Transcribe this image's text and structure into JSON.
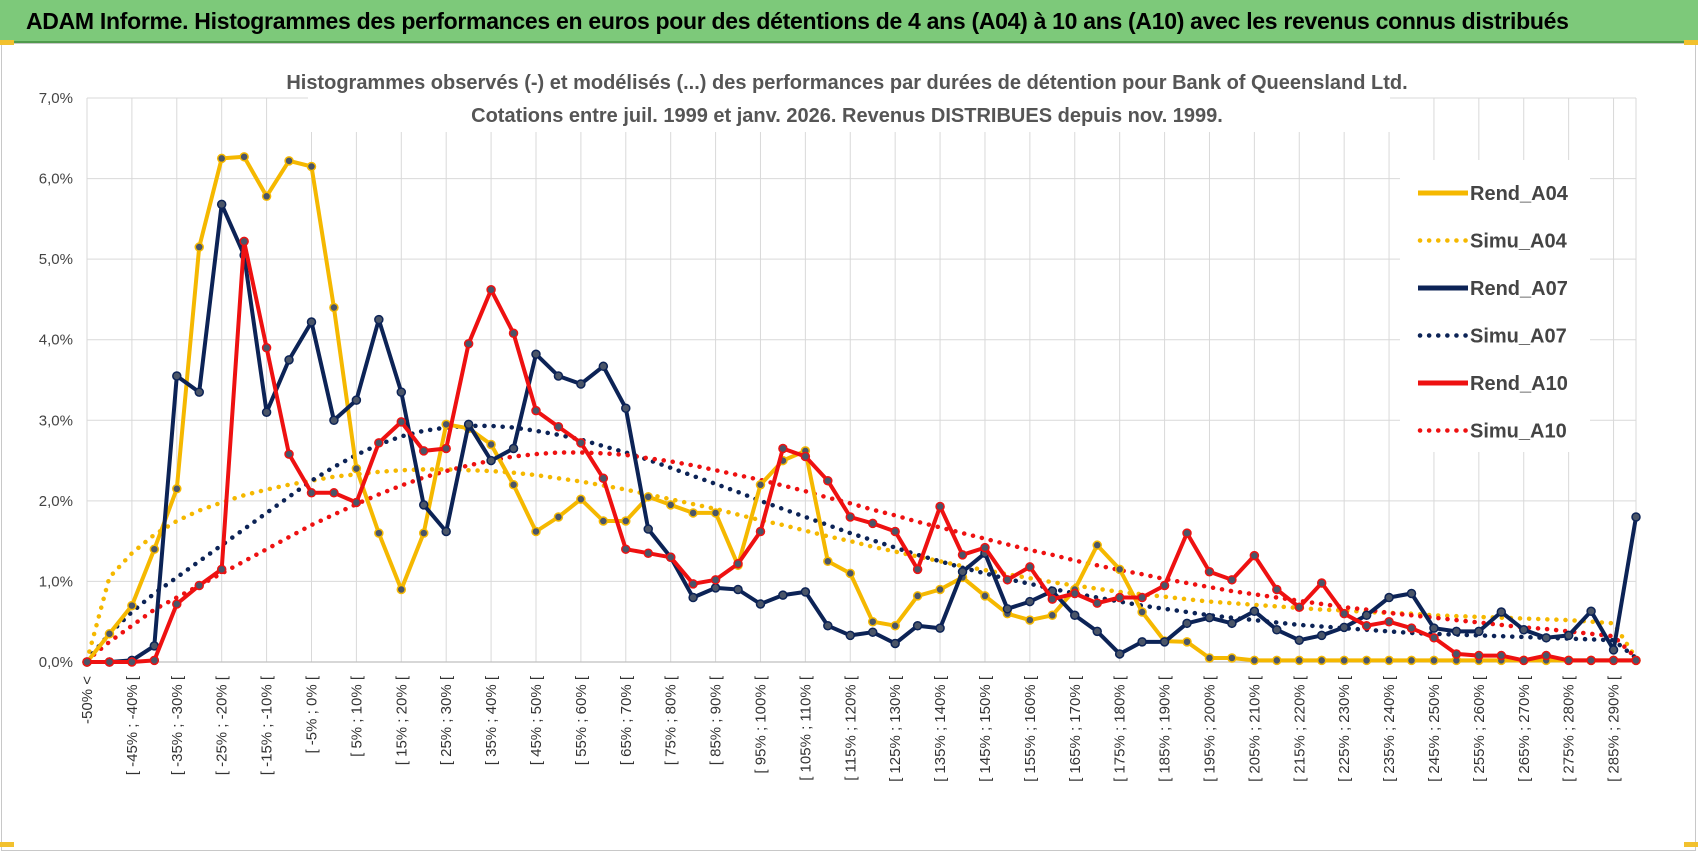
{
  "header": {
    "title": "ADAM Informe. Histogrammes des performances en euros pour des détentions de 4 ans (A04) à 10 ans (A10) avec les revenus connus distribués"
  },
  "colors": {
    "banner_bg": "#7dc97a",
    "A04": "#f5b800",
    "A07": "#0c2356",
    "A10": "#ee1111",
    "grid": "#d9d9d9"
  },
  "chart_data": {
    "type": "line",
    "title_lines": [
      "Histogrammes observés (-) et modélisés (...) des performances par durées de détention pour Bank of Queensland Ltd.",
      "Cotations entre juil. 1999 et janv. 2026. Revenus DISTRIBUES depuis nov. 1999."
    ],
    "y_ticks": [
      "0,0%",
      "1,0%",
      "2,0%",
      "3,0%",
      "4,0%",
      "5,0%",
      "6,0%",
      "7,0%"
    ],
    "ylim": [
      0,
      7
    ],
    "y_unit": "%",
    "x_labels": [
      "-50% <",
      "[ -45% ; -40% [",
      "[ -35% ; -30% [",
      "[ -25% ; -20% [",
      "[ -15% ; -10% [",
      "[ -5% ; 0% [",
      "[ 5% ; 10% [",
      "[ 15% ; 20% [",
      "[ 25% ; 30% [",
      "[ 35% ; 40% [",
      "[ 45% ; 50% [",
      "[ 55% ; 60% [",
      "[ 65% ; 70% [",
      "[ 75% ; 80% [",
      "[ 85% ; 90% [",
      "[ 95% ; 100% [",
      "[ 105% ; 110% [",
      "[ 115% ; 120% [",
      "[ 125% ; 130% [",
      "[ 135% ; 140% [",
      "[ 145% ; 150% [",
      "[ 155% ; 160% [",
      "[ 165% ; 170% [",
      "[ 175% ; 180% [",
      "[ 185% ; 190% [",
      "[ 195% ; 200% [",
      "[ 205% ; 210% [",
      "[ 215% ; 220% [",
      "[ 225% ; 230% [",
      "[ 235% ; 240% [",
      "[ 245% ; 250% [",
      "[ 255% ; 260% [",
      "[ 265% ; 270% [",
      "[ 275% ; 280% [",
      "[ 285% ; 290% ["
    ],
    "legend_position": "right",
    "grid": true,
    "series": [
      {
        "name": "Rend_A04",
        "key": "A04",
        "style": "solid",
        "values": [
          0.0,
          0.35,
          0.7,
          1.4,
          2.15,
          5.15,
          6.25,
          6.27,
          5.78,
          6.22,
          6.15,
          4.4,
          2.4,
          1.6,
          0.9,
          1.6,
          2.95,
          2.9,
          2.7,
          2.2,
          1.62,
          1.8,
          2.02,
          1.75,
          1.75,
          2.05,
          1.95,
          1.85,
          1.85,
          1.2,
          2.2,
          2.5,
          2.62,
          1.25,
          1.1,
          0.5,
          0.45,
          0.82,
          0.9,
          1.05,
          0.82,
          0.6,
          0.52,
          0.58,
          0.9,
          1.45,
          1.15,
          0.62,
          0.26,
          0.25,
          0.05,
          0.05,
          0.02,
          0.02,
          0.02,
          0.02,
          0.02,
          0.02,
          0.02,
          0.02,
          0.02,
          0.02,
          0.02,
          0.02,
          0.02,
          0.02,
          0.02,
          0.02,
          0.02,
          0.02
        ]
      },
      {
        "name": "Simu_A04",
        "key": "A04",
        "style": "dotted",
        "values": [
          0.02,
          1.05,
          1.35,
          1.58,
          1.75,
          1.88,
          1.98,
          2.07,
          2.14,
          2.2,
          2.25,
          2.3,
          2.33,
          2.36,
          2.38,
          2.39,
          2.39,
          2.38,
          2.37,
          2.35,
          2.32,
          2.28,
          2.24,
          2.19,
          2.14,
          2.08,
          2.02,
          1.96,
          1.9,
          1.83,
          1.76,
          1.7,
          1.63,
          1.56,
          1.5,
          1.43,
          1.37,
          1.31,
          1.25,
          1.19,
          1.14,
          1.09,
          1.04,
          0.99,
          0.95,
          0.91,
          0.87,
          0.84,
          0.81,
          0.78,
          0.75,
          0.73,
          0.71,
          0.69,
          0.67,
          0.65,
          0.64,
          0.62,
          0.61,
          0.6,
          0.58,
          0.57,
          0.56,
          0.55,
          0.54,
          0.53,
          0.52,
          0.5,
          0.48,
          0.05
        ]
      },
      {
        "name": "Rend_A07",
        "key": "A07",
        "style": "solid",
        "values": [
          0.0,
          0.0,
          0.02,
          0.2,
          3.55,
          3.35,
          5.68,
          5.05,
          3.1,
          3.75,
          4.22,
          3.0,
          3.25,
          4.25,
          3.35,
          1.95,
          1.62,
          2.95,
          2.5,
          2.65,
          3.82,
          3.55,
          3.45,
          3.67,
          3.15,
          1.65,
          1.3,
          0.8,
          0.92,
          0.9,
          0.72,
          0.83,
          0.87,
          0.45,
          0.33,
          0.37,
          0.23,
          0.45,
          0.42,
          1.12,
          1.35,
          0.66,
          0.75,
          0.88,
          0.58,
          0.38,
          0.1,
          0.25,
          0.25,
          0.48,
          0.55,
          0.48,
          0.63,
          0.4,
          0.27,
          0.33,
          0.43,
          0.58,
          0.8,
          0.85,
          0.42,
          0.38,
          0.38,
          0.62,
          0.4,
          0.3,
          0.33,
          0.63,
          0.15,
          1.8
        ]
      },
      {
        "name": "Simu_A07",
        "key": "A07",
        "style": "dotted",
        "values": [
          0.02,
          0.35,
          0.62,
          0.85,
          1.05,
          1.25,
          1.45,
          1.65,
          1.85,
          2.05,
          2.25,
          2.42,
          2.57,
          2.7,
          2.8,
          2.87,
          2.91,
          2.93,
          2.93,
          2.91,
          2.87,
          2.82,
          2.76,
          2.68,
          2.6,
          2.51,
          2.41,
          2.31,
          2.21,
          2.11,
          2.0,
          1.9,
          1.8,
          1.7,
          1.6,
          1.51,
          1.42,
          1.33,
          1.25,
          1.17,
          1.1,
          1.03,
          0.97,
          0.91,
          0.85,
          0.8,
          0.75,
          0.7,
          0.66,
          0.62,
          0.58,
          0.55,
          0.52,
          0.49,
          0.46,
          0.44,
          0.42,
          0.4,
          0.38,
          0.36,
          0.35,
          0.34,
          0.33,
          0.32,
          0.31,
          0.3,
          0.29,
          0.28,
          0.27,
          0.05
        ]
      },
      {
        "name": "Rend_A10",
        "key": "A10",
        "style": "solid",
        "values": [
          0.0,
          0.0,
          0.0,
          0.02,
          0.72,
          0.95,
          1.15,
          5.22,
          3.9,
          2.58,
          2.1,
          2.1,
          1.98,
          2.72,
          2.98,
          2.62,
          2.65,
          3.95,
          4.62,
          4.08,
          3.12,
          2.92,
          2.72,
          2.28,
          1.4,
          1.35,
          1.3,
          0.97,
          1.02,
          1.22,
          1.62,
          2.65,
          2.55,
          2.25,
          1.8,
          1.72,
          1.62,
          1.15,
          1.93,
          1.33,
          1.42,
          1.02,
          1.18,
          0.78,
          0.85,
          0.73,
          0.8,
          0.8,
          0.95,
          1.6,
          1.12,
          1.02,
          1.32,
          0.9,
          0.68,
          0.98,
          0.6,
          0.45,
          0.5,
          0.42,
          0.3,
          0.1,
          0.08,
          0.08,
          0.02,
          0.08,
          0.02,
          0.02,
          0.02,
          0.02
        ]
      },
      {
        "name": "Simu_A10",
        "key": "A10",
        "style": "dotted",
        "values": [
          0.02,
          0.25,
          0.45,
          0.65,
          0.8,
          0.95,
          1.1,
          1.25,
          1.4,
          1.55,
          1.7,
          1.83,
          1.96,
          2.08,
          2.19,
          2.29,
          2.37,
          2.44,
          2.5,
          2.55,
          2.58,
          2.6,
          2.6,
          2.59,
          2.57,
          2.53,
          2.49,
          2.44,
          2.38,
          2.32,
          2.26,
          2.19,
          2.12,
          2.04,
          1.97,
          1.89,
          1.82,
          1.74,
          1.67,
          1.6,
          1.53,
          1.46,
          1.39,
          1.33,
          1.26,
          1.2,
          1.14,
          1.09,
          1.03,
          0.98,
          0.93,
          0.88,
          0.84,
          0.8,
          0.76,
          0.72,
          0.68,
          0.65,
          0.61,
          0.58,
          0.55,
          0.52,
          0.49,
          0.46,
          0.43,
          0.41,
          0.38,
          0.35,
          0.32,
          0.05
        ]
      }
    ]
  }
}
